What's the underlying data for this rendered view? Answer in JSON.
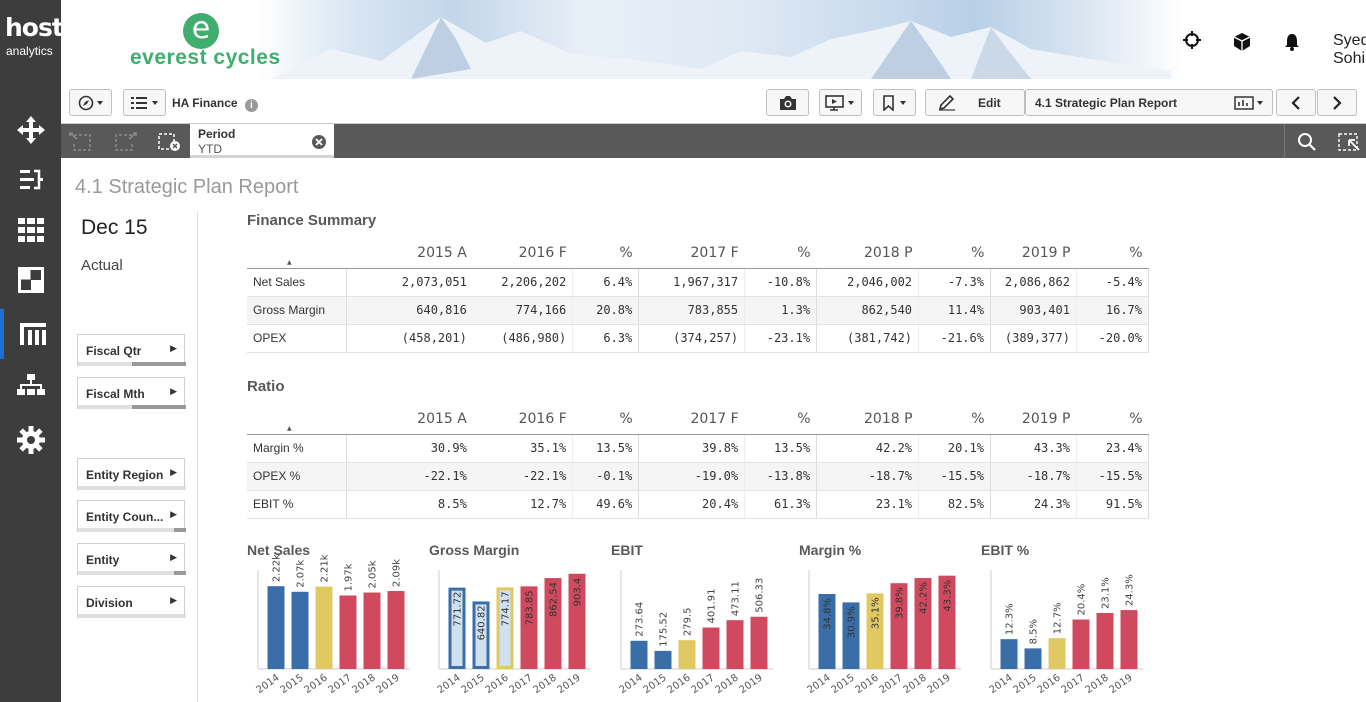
{
  "rail": {
    "logo_line1": "host",
    "logo_line2": "analytics",
    "items": [
      "move-icon",
      "flow-icon",
      "grid-icon",
      "dashboard-icon",
      "columns-icon",
      "org-icon",
      "gear-icon"
    ],
    "active_index": 4
  },
  "header": {
    "brand_letter": "e",
    "brand_name": "everest cycles",
    "user_name": "Syed Sohil"
  },
  "toolbar": {
    "app_title": "HA Finance",
    "edit_label": "Edit",
    "sheet_selector": "4.1 Strategic Plan Report"
  },
  "selections": {
    "field": "Period",
    "value": "YTD"
  },
  "sheet": {
    "title": "4.1 Strategic Plan Report",
    "date": "Dec 15",
    "scenario": "Actual",
    "filters": [
      "Fiscal Qtr",
      "Fiscal Mth",
      "Entity Region",
      "Entity Coun...",
      "Entity",
      "Division"
    ]
  },
  "finance_summary": {
    "title": "Finance Summary",
    "headers": [
      "2015 A",
      "2016 F",
      "%",
      "2017 F",
      "%",
      "2018 P",
      "%",
      "2019 P",
      "%"
    ],
    "rows": [
      {
        "label": "Net Sales",
        "cells": [
          "2,073,051",
          "2,206,202",
          "6.4%",
          "1,967,317",
          "-10.8%",
          "2,046,002",
          "-7.3%",
          "2,086,862",
          "-5.4%"
        ],
        "pct_sign": [
          "pos",
          "neg",
          "neg",
          "neg"
        ]
      },
      {
        "label": "Gross Margin",
        "cells": [
          "640,816",
          "774,166",
          "20.8%",
          "783,855",
          "1.3%",
          "862,540",
          "11.4%",
          "903,401",
          "16.7%"
        ],
        "pct_sign": [
          "pos",
          "pos",
          "pos",
          "pos"
        ]
      },
      {
        "label": "OPEX",
        "cells": [
          "(458,201)",
          "(486,980)",
          "6.3%",
          "(374,257)",
          "-23.1%",
          "(381,742)",
          "-21.6%",
          "(389,377)",
          "-20.0%"
        ],
        "pct_sign": [
          "neg",
          "pos",
          "pos",
          "pos"
        ]
      }
    ]
  },
  "ratio": {
    "title": "Ratio",
    "headers": [
      "2015 A",
      "2016 F",
      "%",
      "2017 F",
      "%",
      "2018 P",
      "%",
      "2019 P",
      "%"
    ],
    "rows": [
      {
        "label": "Margin %",
        "cells": [
          "30.9%",
          "35.1%",
          "13.5%",
          "39.8%",
          "13.5%",
          "42.2%",
          "20.1%",
          "43.3%",
          "23.4%"
        ],
        "pct_sign": [
          "pos",
          "pos",
          "pos",
          "pos"
        ]
      },
      {
        "label": "OPEX %",
        "cells": [
          "-22.1%",
          "-22.1%",
          "-0.1%",
          "-19.0%",
          "-13.8%",
          "-18.7%",
          "-15.5%",
          "-18.7%",
          "-15.5%"
        ],
        "pct_sign": [
          "pos",
          "pos",
          "pos",
          "pos"
        ]
      },
      {
        "label": "EBIT %",
        "cells": [
          "8.5%",
          "12.7%",
          "49.6%",
          "20.4%",
          "61.3%",
          "23.1%",
          "82.5%",
          "24.3%",
          "91.5%"
        ],
        "pct_sign": [
          "pos",
          "pos",
          "pos",
          "pos"
        ]
      }
    ]
  },
  "colors": {
    "actual": "#3a6ea8",
    "forecast": "#e0c862",
    "plan": "#cf4a5e",
    "highlight_fill": "#cfe0f1"
  },
  "chart_data": [
    {
      "type": "bar",
      "title": "Net Sales",
      "categories": [
        "2014",
        "2015",
        "2016",
        "2017",
        "2018",
        "2019"
      ],
      "values": [
        2220,
        2070,
        2210,
        1970,
        2050,
        2090
      ],
      "labels": [
        "2.22k",
        "2.07k",
        "2.21k",
        "1.97k",
        "2.05k",
        "2.09k"
      ],
      "kinds": [
        "actual",
        "actual",
        "forecast",
        "plan",
        "plan",
        "plan"
      ],
      "highlight": [],
      "label_inside": false,
      "ylim": [
        0,
        2600
      ]
    },
    {
      "type": "bar",
      "title": "Gross Margin",
      "categories": [
        "2014",
        "2015",
        "2016",
        "2017",
        "2018",
        "2019"
      ],
      "values": [
        771.72,
        640.82,
        774.17,
        783.85,
        862.54,
        903.4
      ],
      "labels": [
        "771.72",
        "640.82",
        "774.17",
        "783.85",
        "862.54",
        "903.4"
      ],
      "kinds": [
        "actual",
        "actual",
        "forecast",
        "plan",
        "plan",
        "plan"
      ],
      "highlight": [
        0,
        1,
        2
      ],
      "label_inside": true,
      "ylim": [
        0,
        920
      ]
    },
    {
      "type": "bar",
      "title": "EBIT",
      "categories": [
        "2014",
        "2015",
        "2016",
        "2017",
        "2018",
        "2019"
      ],
      "values": [
        273.64,
        175.52,
        279.5,
        401.91,
        473.11,
        506.33
      ],
      "labels": [
        "273.64",
        "175.52",
        "279.5",
        "401.91",
        "473.11",
        "506.33"
      ],
      "kinds": [
        "actual",
        "actual",
        "forecast",
        "plan",
        "plan",
        "plan"
      ],
      "highlight": [],
      "label_inside": false,
      "ylim": [
        0,
        940
      ]
    },
    {
      "type": "bar",
      "title": "Margin %",
      "categories": [
        "2014",
        "2015",
        "2016",
        "2017",
        "2018",
        "2019"
      ],
      "values": [
        34.8,
        30.9,
        35.1,
        39.8,
        42.2,
        43.3
      ],
      "labels": [
        "34.8%",
        "30.9%",
        "35.1%",
        "39.8%",
        "42.2%",
        "43.3%"
      ],
      "kinds": [
        "actual",
        "actual",
        "forecast",
        "plan",
        "plan",
        "plan"
      ],
      "highlight": [],
      "label_inside": true,
      "ylim": [
        0,
        45
      ]
    },
    {
      "type": "bar",
      "title": "EBIT %",
      "categories": [
        "2014",
        "2015",
        "2016",
        "2017",
        "2018",
        "2019"
      ],
      "values": [
        12.3,
        8.5,
        12.7,
        20.4,
        23.1,
        24.3
      ],
      "labels": [
        "12.3%",
        "8.5%",
        "12.7%",
        "20.4%",
        "23.1%",
        "24.3%"
      ],
      "kinds": [
        "actual",
        "actual",
        "forecast",
        "plan",
        "plan",
        "plan"
      ],
      "highlight": [],
      "label_inside": false,
      "ylim": [
        0,
        40
      ]
    }
  ]
}
